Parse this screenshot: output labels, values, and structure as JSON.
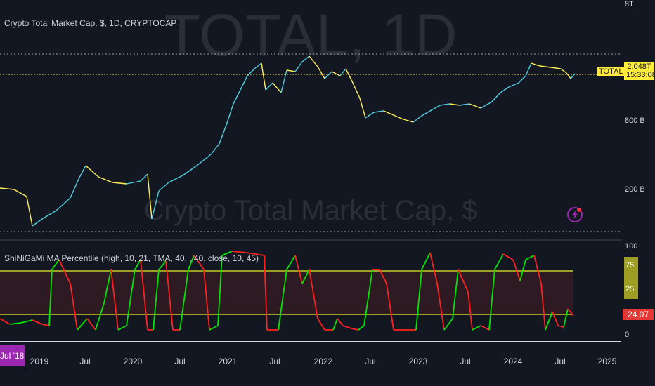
{
  "symbol_title": "Crypto Total Market Cap, $, 1D, CRYPTOCAP",
  "watermark": {
    "symbol": "TOTAL, 1D",
    "name": "Crypto Total Market Cap, $"
  },
  "indicator_title": "ShiNiGaMi MA Percentile (high, 10, 21, TMA, 40, , 40, close, 10, 45)",
  "price_axis": {
    "top_tick": "8T",
    "mid_tick": "800 B",
    "low_tick": "200 B"
  },
  "price_tag": {
    "name": "TOTAL",
    "value": "2.048T",
    "countdown": "15:33:08"
  },
  "indicator_axis": {
    "top": "100",
    "upper_level": "75",
    "lower_level": "25",
    "zero": "0",
    "current": "24.07"
  },
  "time_axis": {
    "first_label": "Jul '18",
    "labels": [
      "2019",
      "Jul",
      "2020",
      "Jul",
      "2021",
      "Jul",
      "2022",
      "Jul",
      "2023",
      "Jul",
      "2024",
      "Jul",
      "2025"
    ]
  },
  "colors": {
    "background": "#131722",
    "price_line_up": "#4dd0e1",
    "price_line_down": "#ffee58",
    "indicator_up": "#00e600",
    "indicator_down": "#ff2020",
    "band_line": "#9e9d24",
    "tag_yellow": "#ffeb3b",
    "current_value_red": "#e53935",
    "time_start_purple": "#9c27b0"
  },
  "icons": {
    "lightning": "lightning-icon"
  }
}
